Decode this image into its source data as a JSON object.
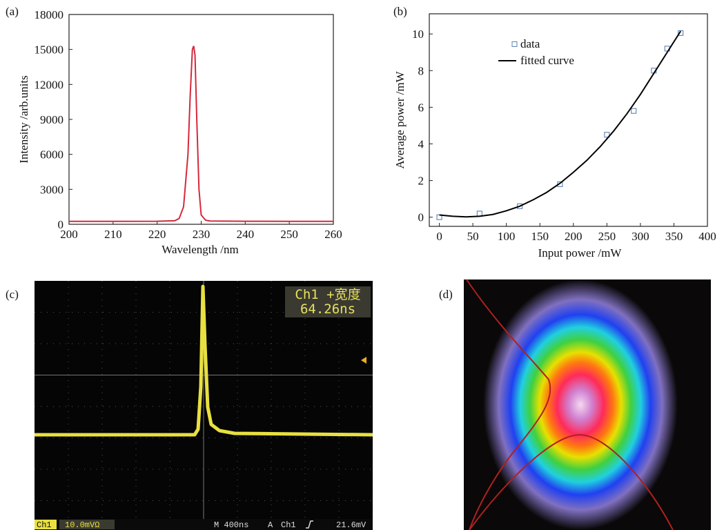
{
  "chart_data": [
    {
      "type": "line",
      "label": "(a)",
      "xlabel": "Wavelength /nm",
      "ylabel": "Intensity /arb.units",
      "color": "#d4283a",
      "x": [
        200,
        210,
        220,
        224,
        225,
        226,
        227,
        227.5,
        228,
        228.3,
        228.6,
        229,
        229.5,
        230,
        231,
        232,
        240,
        250,
        260
      ],
      "values": [
        250,
        250,
        260,
        300,
        500,
        1500,
        6000,
        11000,
        15000,
        15300,
        14500,
        9000,
        3000,
        800,
        350,
        280,
        260,
        250,
        250
      ],
      "xlim": [
        200,
        260
      ],
      "xticks": [
        200,
        210,
        220,
        230,
        240,
        250,
        260
      ],
      "ylim": [
        0,
        18000
      ],
      "yticks": [
        0,
        3000,
        6000,
        9000,
        12000,
        15000,
        18000
      ]
    },
    {
      "type": "scatter",
      "label": "(b)",
      "xlabel": "Input power /mW",
      "ylabel": "Average power /mW",
      "legend": "upper left",
      "series": [
        {
          "name": "data",
          "type": "scatter",
          "color": "#5b80b4",
          "x": [
            0,
            60,
            120,
            180,
            250,
            290,
            320,
            340,
            360
          ],
          "values": [
            0,
            0.2,
            0.6,
            1.8,
            4.5,
            5.8,
            8.0,
            9.2,
            10.05
          ]
        },
        {
          "name": "fitted curve",
          "type": "line",
          "color": "#000000",
          "x": [
            0,
            20,
            40,
            60,
            80,
            100,
            120,
            140,
            160,
            180,
            200,
            220,
            240,
            260,
            280,
            300,
            320,
            340,
            360
          ],
          "values": [
            0.12,
            0.05,
            0.02,
            0.05,
            0.15,
            0.35,
            0.6,
            0.95,
            1.35,
            1.85,
            2.45,
            3.1,
            3.85,
            4.7,
            5.65,
            6.7,
            7.85,
            9.0,
            10.15
          ]
        }
      ],
      "xlim": [
        -15,
        400
      ],
      "xticks": [
        0,
        50,
        100,
        150,
        200,
        250,
        300,
        350,
        400
      ],
      "ylim": [
        -0.5,
        11.1
      ],
      "yticks": [
        0,
        2,
        4,
        6,
        8,
        10
      ]
    }
  ],
  "panel_c": {
    "label": "(c)",
    "readout_title": "Ch1 +宽度",
    "readout_value": "64.26ns",
    "status": {
      "channel": "Ch1",
      "scale": "10.0mVΩ",
      "timebase": "M 400ns",
      "trigger_mode": "A",
      "trigger_channel": "Ch1",
      "trigger_level": "21.6mV"
    }
  },
  "panel_d": {
    "label": "(d)"
  }
}
